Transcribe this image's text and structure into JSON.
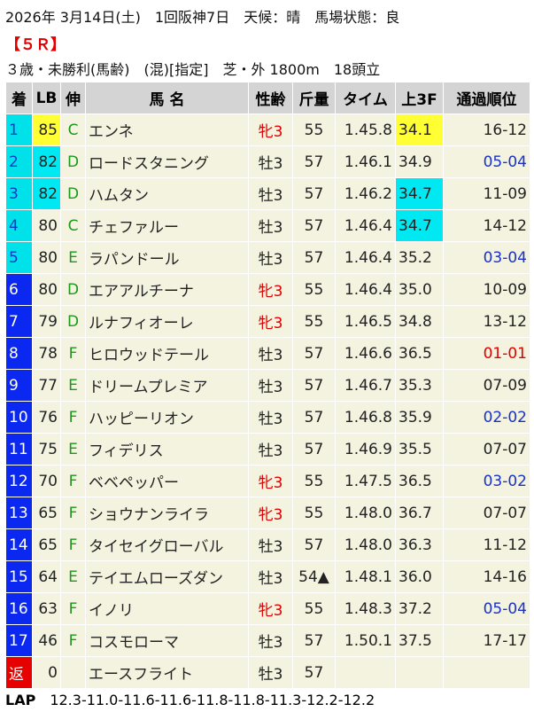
{
  "header": {
    "date_line": "2026年 3月14日(土)　1回阪神7日　天候：晴　馬場状態：良",
    "race": "【５Ｒ】",
    "condition": "３歳・未勝利(馬齢)　(混)[指定]　芝・外 1800m　18頭立"
  },
  "table": {
    "columns": [
      "着",
      "LB",
      "伸",
      "馬 名",
      "性齢",
      "斤量",
      "タイム",
      "上3F",
      "通過順位"
    ],
    "rows": [
      {
        "rank": "1",
        "lb": "85",
        "nobi": "C",
        "name": "エンネ",
        "sex_age": "牝3",
        "weight": "55",
        "time": "1.45.8",
        "last3f": "34.1",
        "passing": "16-12"
      },
      {
        "rank": "2",
        "lb": "82",
        "nobi": "D",
        "name": "ロードスタニング",
        "sex_age": "牡3",
        "weight": "57",
        "time": "1.46.1",
        "last3f": "34.9",
        "passing": "05-04",
        "passing_color": "#1a32c8"
      },
      {
        "rank": "3",
        "lb": "82",
        "nobi": "D",
        "name": "ハムタン",
        "sex_age": "牡3",
        "weight": "57",
        "time": "1.46.2",
        "last3f": "34.7",
        "passing": "11-09"
      },
      {
        "rank": "4",
        "lb": "80",
        "nobi": "C",
        "name": "チェファルー",
        "sex_age": "牡3",
        "weight": "57",
        "time": "1.46.4",
        "last3f": "34.7",
        "passing": "14-12"
      },
      {
        "rank": "5",
        "lb": "80",
        "nobi": "E",
        "name": "ラパンドール",
        "sex_age": "牡3",
        "weight": "57",
        "time": "1.46.4",
        "last3f": "35.2",
        "passing": "03-04",
        "passing_color": "#1a32c8"
      },
      {
        "rank": "6",
        "lb": "80",
        "nobi": "D",
        "name": "エアアルチーナ",
        "sex_age": "牝3",
        "weight": "55",
        "time": "1.46.4",
        "last3f": "35.0",
        "passing": "10-09"
      },
      {
        "rank": "7",
        "lb": "79",
        "nobi": "D",
        "name": "ルナフィオーレ",
        "sex_age": "牝3",
        "weight": "55",
        "time": "1.46.5",
        "last3f": "34.8",
        "passing": "13-12"
      },
      {
        "rank": "8",
        "lb": "78",
        "nobi": "F",
        "name": "ヒロウッドテール",
        "sex_age": "牡3",
        "weight": "57",
        "time": "1.46.6",
        "last3f": "36.5",
        "passing": "01-01",
        "passing_color": "#e00000"
      },
      {
        "rank": "9",
        "lb": "77",
        "nobi": "E",
        "name": "ドリームプレミア",
        "sex_age": "牡3",
        "weight": "57",
        "time": "1.46.7",
        "last3f": "35.3",
        "passing": "07-09"
      },
      {
        "rank": "10",
        "lb": "76",
        "nobi": "F",
        "name": "ハッピーリオン",
        "sex_age": "牡3",
        "weight": "57",
        "time": "1.46.8",
        "last3f": "35.9",
        "passing": "02-02",
        "passing_color": "#1a32c8"
      },
      {
        "rank": "11",
        "lb": "75",
        "nobi": "E",
        "name": "フィデリス",
        "sex_age": "牡3",
        "weight": "57",
        "time": "1.46.9",
        "last3f": "35.5",
        "passing": "07-07"
      },
      {
        "rank": "12",
        "lb": "70",
        "nobi": "F",
        "name": "ベベペッパー",
        "sex_age": "牝3",
        "weight": "55",
        "time": "1.47.5",
        "last3f": "36.5",
        "passing": "03-02",
        "passing_color": "#1a32c8"
      },
      {
        "rank": "13",
        "lb": "65",
        "nobi": "F",
        "name": "ショウナンライラ",
        "sex_age": "牝3",
        "weight": "55",
        "time": "1.48.0",
        "last3f": "36.7",
        "passing": "07-07"
      },
      {
        "rank": "14",
        "lb": "65",
        "nobi": "F",
        "name": "タイセイグローバル",
        "sex_age": "牡3",
        "weight": "57",
        "time": "1.48.0",
        "last3f": "36.3",
        "passing": "11-12"
      },
      {
        "rank": "15",
        "lb": "64",
        "nobi": "E",
        "name": "テイエムローズダン",
        "sex_age": "牡3",
        "weight": "54▲",
        "time": "1.48.1",
        "last3f": "36.0",
        "passing": "14-16"
      },
      {
        "rank": "16",
        "lb": "63",
        "nobi": "F",
        "name": "イノリ",
        "sex_age": "牝3",
        "weight": "55",
        "time": "1.48.3",
        "last3f": "37.2",
        "passing": "05-04",
        "passing_color": "#1a32c8"
      },
      {
        "rank": "17",
        "lb": "46",
        "nobi": "F",
        "name": "コスモローマ",
        "sex_age": "牡3",
        "weight": "57",
        "time": "1.50.1",
        "last3f": "37.5",
        "passing": "17-17"
      },
      {
        "rank": "返",
        "lb": "0",
        "nobi": null,
        "name": "エースフライト",
        "sex_age": "牡3",
        "weight": "57",
        "time": null,
        "last3f": null,
        "passing": null
      }
    ]
  },
  "lap": {
    "label": "LAP",
    "value": "12.3-11.0-11.6-11.6-11.8-11.8-11.3-12.2-12.2"
  }
}
